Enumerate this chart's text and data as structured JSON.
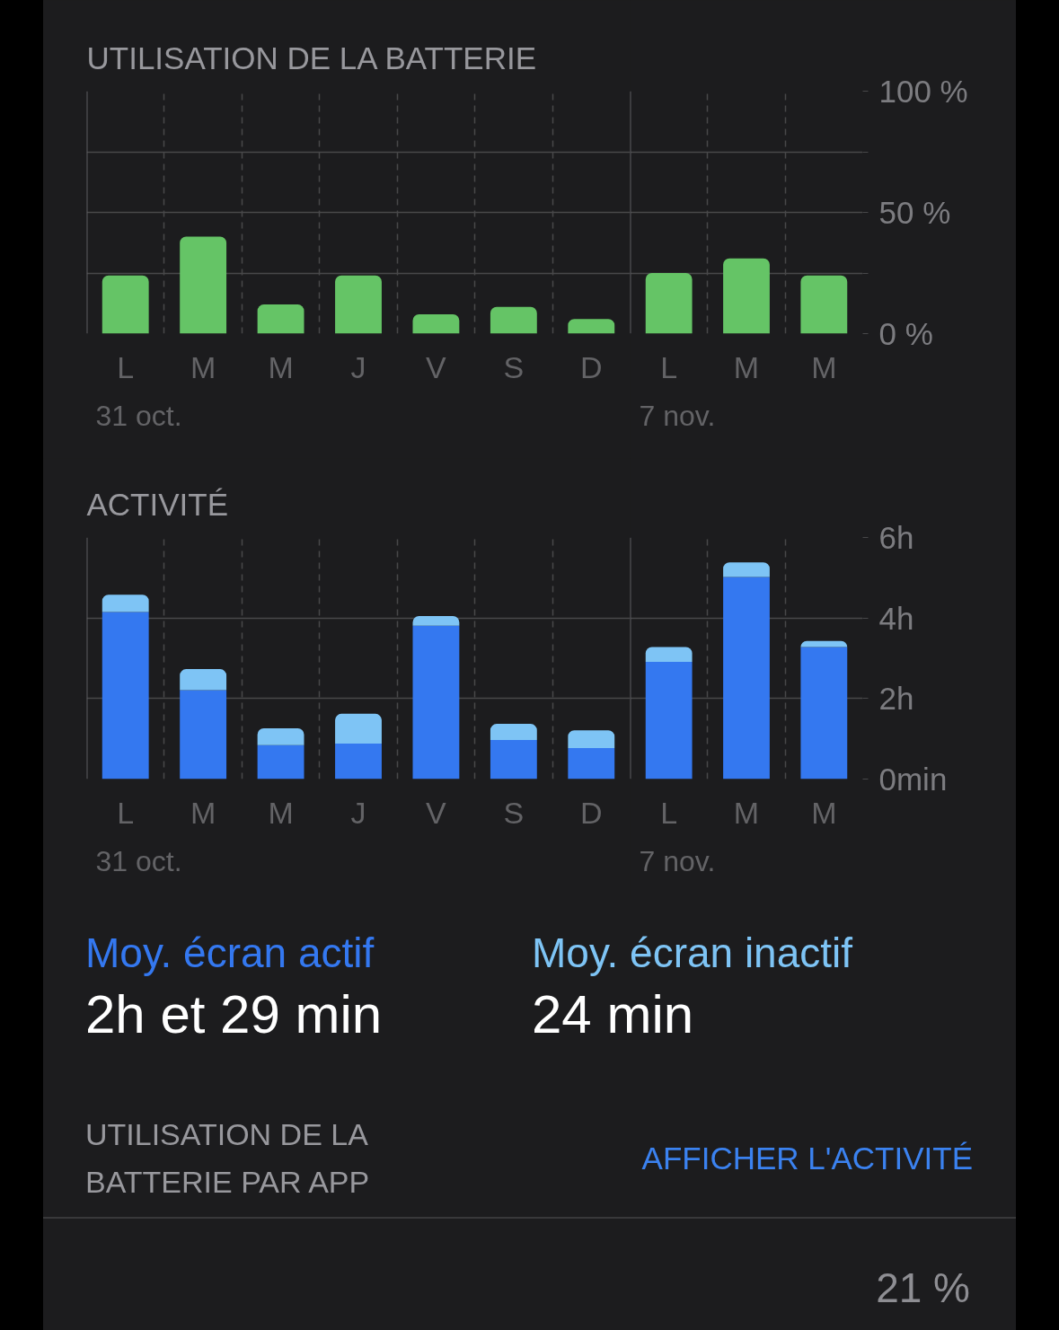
{
  "chart_data": [
    {
      "type": "bar",
      "title": "UTILISATION DE LA BATTERIE",
      "xlabel": "31 oct.",
      "categories": [
        "L",
        "M",
        "M",
        "J",
        "V",
        "S",
        "D"
      ],
      "values": [
        24,
        40,
        12,
        24,
        8,
        11,
        6
      ],
      "color": "#65c466",
      "ylim": [
        0,
        100
      ],
      "yticks": [
        0,
        25,
        50,
        75,
        100
      ],
      "grid": true,
      "tick_labels": "x"
    },
    {
      "type": "bar",
      "xlabel": "7 nov.",
      "categories": [
        "L",
        "M",
        "M"
      ],
      "values": [
        25,
        31,
        24
      ],
      "color": "#65c466",
      "ylim": [
        0,
        100
      ],
      "yticks": [
        {
          "value": 0,
          "label": "0 %"
        },
        {
          "value": 25,
          "label": null
        },
        {
          "value": 50,
          "label": "50 %"
        },
        {
          "value": 75,
          "label": null
        },
        {
          "value": 100,
          "label": "100 %"
        }
      ],
      "grid": true
    },
    {
      "type": "bar",
      "title": "ACTIVITÉ",
      "xlabel": "31 oct.",
      "stacked": true,
      "categories": [
        "L",
        "M",
        "M",
        "J",
        "V",
        "S",
        "D"
      ],
      "series": [
        {
          "name": "Moy. écran actif",
          "color": "#3478f0",
          "values": [
            4.15,
            2.21,
            0.84,
            0.88,
            3.81,
            0.97,
            0.77
          ]
        },
        {
          "name": "Moy. écran inactif",
          "color": "#7ec4f5",
          "values": [
            0.43,
            0.52,
            0.42,
            0.74,
            0.24,
            0.4,
            0.44
          ]
        }
      ],
      "ylim": [
        0,
        6
      ],
      "yticks": [
        0,
        2,
        4,
        6
      ],
      "grid": true,
      "tick_labels": "x",
      "legend": "bottom",
      "annotations": [
        "2h et 29 min",
        "24 min"
      ]
    },
    {
      "type": "bar",
      "xlabel": "7 nov.",
      "stacked": true,
      "categories": [
        "L",
        "M",
        "M"
      ],
      "series": [
        {
          "color": "#3478f0",
          "values": [
            2.91,
            5.02,
            3.28
          ]
        },
        {
          "color": "#7ec4f5",
          "values": [
            0.37,
            0.36,
            0.15
          ]
        }
      ],
      "ylim": [
        0,
        6
      ],
      "yticks": [
        {
          "value": 0,
          "label": "0min"
        },
        {
          "value": 2,
          "label": "2h"
        },
        {
          "value": 4,
          "label": "4h"
        },
        {
          "value": 6,
          "label": "6h"
        }
      ],
      "grid": true
    },
    {
      "type": "other",
      "title": "UTILISATION DE LA BATTERIE PAR APP",
      "annotations": [
        "AFFICHER L'ACTIVITÉ",
        "21 %"
      ]
    }
  ]
}
